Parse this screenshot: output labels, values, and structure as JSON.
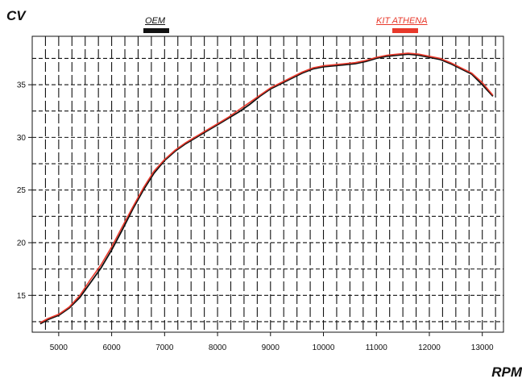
{
  "chart_data": {
    "type": "line",
    "ylabel": "CV",
    "xlabel": "RPM",
    "xlim": [
      4500,
      13400
    ],
    "ylim": [
      11.5,
      39.6
    ],
    "xticks": [
      5000,
      6000,
      7000,
      8000,
      9000,
      10000,
      11000,
      12000,
      13000
    ],
    "yticks": [
      15,
      20,
      25,
      30,
      35
    ],
    "grid": true,
    "legend_position": "top",
    "series": [
      {
        "name": "OEM",
        "color": "#111111",
        "x": [
          4650,
          4800,
          5000,
          5200,
          5400,
          5600,
          5800,
          6000,
          6200,
          6400,
          6600,
          6800,
          7000,
          7200,
          7400,
          7600,
          7800,
          8000,
          8200,
          8400,
          8600,
          8800,
          9000,
          9200,
          9400,
          9600,
          9800,
          10000,
          10200,
          10400,
          10600,
          10800,
          11000,
          11200,
          11400,
          11600,
          11800,
          12000,
          12200,
          12400,
          12600,
          12800,
          13000,
          13200
        ],
        "y": [
          12.3,
          12.7,
          13.1,
          13.8,
          14.8,
          16.2,
          17.6,
          19.3,
          21.2,
          23.2,
          25.0,
          26.6,
          27.8,
          28.7,
          29.4,
          30.0,
          30.6,
          31.2,
          31.8,
          32.4,
          33.1,
          33.9,
          34.6,
          35.1,
          35.6,
          36.1,
          36.5,
          36.7,
          36.8,
          36.9,
          37.0,
          37.2,
          37.5,
          37.7,
          37.8,
          37.9,
          37.8,
          37.6,
          37.4,
          37.0,
          36.5,
          36.0,
          35.0,
          33.9
        ]
      },
      {
        "name": "KIT ATHENA",
        "color": "#e8392b",
        "x": [
          4650,
          4800,
          5000,
          5200,
          5400,
          5600,
          5800,
          6000,
          6200,
          6400,
          6600,
          6800,
          7000,
          7200,
          7400,
          7600,
          7800,
          8000,
          8200,
          8400,
          8600,
          8800,
          9000,
          9200,
          9400,
          9600,
          9800,
          10000,
          10200,
          10400,
          10600,
          10800,
          11000,
          11200,
          11400,
          11600,
          11800,
          12000,
          12200,
          12400,
          12600,
          12800,
          13000,
          13200
        ],
        "y": [
          12.4,
          12.8,
          13.2,
          13.9,
          15.0,
          16.5,
          17.9,
          19.6,
          21.5,
          23.4,
          25.2,
          26.8,
          27.9,
          28.8,
          29.5,
          30.1,
          30.7,
          31.3,
          31.9,
          32.6,
          33.3,
          34.0,
          34.7,
          35.2,
          35.7,
          36.2,
          36.6,
          36.8,
          36.9,
          37.0,
          37.1,
          37.3,
          37.6,
          37.8,
          37.9,
          38.0,
          37.9,
          37.7,
          37.5,
          37.1,
          36.6,
          36.1,
          35.2,
          34.0
        ]
      }
    ]
  }
}
